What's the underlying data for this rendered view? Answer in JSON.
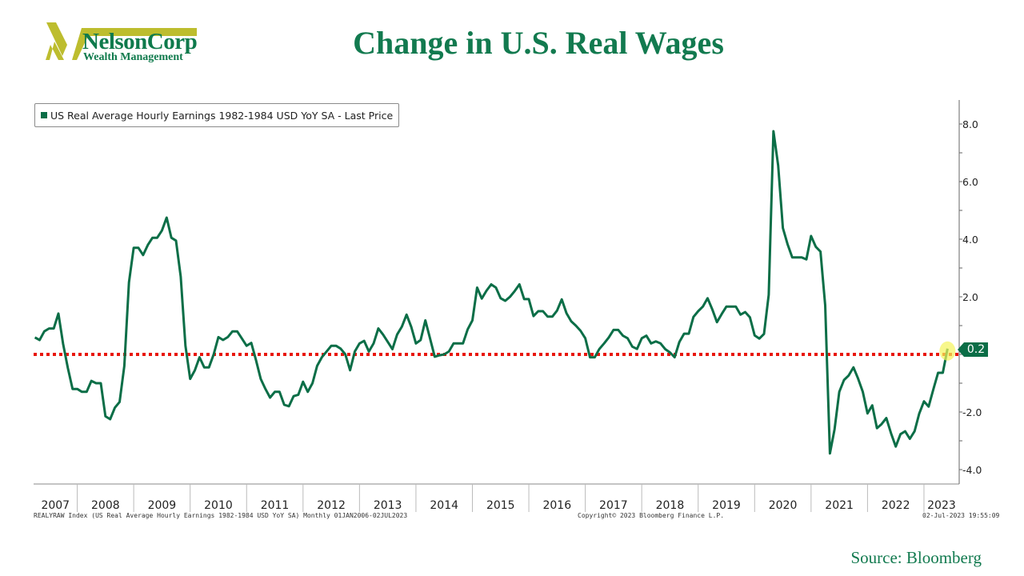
{
  "logo": {
    "name": "NelsonCorp",
    "subtitle": "Wealth Management",
    "accent": "#bdbd2e"
  },
  "title": "Change in U.S. Real Wages",
  "source": "Source: Bloomberg",
  "footer": {
    "index_note": "REALYRAW Index (US Real Average Hourly Earnings 1982-1984 USD YoY SA)  Monthly 01JAN2006-02JUL2023",
    "copyright": "Copyright© 2023 Bloomberg Finance L.P.",
    "timestamp": "02-Jul-2023 19:55:09"
  },
  "chart_data": {
    "type": "line",
    "legend": {
      "position": "top-left",
      "entries": [
        "US Real Average Hourly Earnings 1982-1984 USD YoY SA - Last Price"
      ]
    },
    "y_axis": {
      "side": "right",
      "ylim": [
        -4.5,
        8.8
      ],
      "ticks": [
        "8.0",
        "6.0",
        "4.0",
        "2.0",
        "0.0",
        "-2.0",
        "-4.0"
      ],
      "tick_values": [
        8,
        6,
        4,
        2,
        0,
        -2,
        -4
      ]
    },
    "x_axis": {
      "tick_labels": [
        "2007",
        "2008",
        "2009",
        "2010",
        "2011",
        "2012",
        "2013",
        "2014",
        "2015",
        "2016",
        "2017",
        "2018",
        "2019",
        "2020",
        "2021",
        "2022",
        "2023"
      ]
    },
    "reference_line": {
      "y": 0,
      "color": "#e8160c",
      "style": "dotted"
    },
    "last_value_label": "0.2",
    "line_color": "#0b6e47",
    "highlight_color": "#f3f35a",
    "series": [
      {
        "name": "US Real Average Hourly Earnings 1982-1984 USD YoY SA - Last Price",
        "points": [
          [
            "2007-04",
            0.59
          ],
          [
            "2007-05",
            0.5
          ],
          [
            "2007-06",
            0.8
          ],
          [
            "2007-07",
            0.9
          ],
          [
            "2007-08",
            0.9
          ],
          [
            "2007-09",
            1.42
          ],
          [
            "2007-10",
            0.36
          ],
          [
            "2007-11",
            -0.47
          ],
          [
            "2007-12",
            -1.2
          ],
          [
            "2008-01",
            -1.2
          ],
          [
            "2008-02",
            -1.3
          ],
          [
            "2008-03",
            -1.3
          ],
          [
            "2008-04",
            -0.92
          ],
          [
            "2008-05",
            -1.0
          ],
          [
            "2008-06",
            -1.0
          ],
          [
            "2008-07",
            -2.15
          ],
          [
            "2008-08",
            -2.25
          ],
          [
            "2008-09",
            -1.85
          ],
          [
            "2008-10",
            -1.65
          ],
          [
            "2008-11",
            -0.4
          ],
          [
            "2008-12",
            2.5
          ],
          [
            "2009-01",
            3.7
          ],
          [
            "2009-02",
            3.7
          ],
          [
            "2009-03",
            3.45
          ],
          [
            "2009-04",
            3.8
          ],
          [
            "2009-05",
            4.05
          ],
          [
            "2009-06",
            4.05
          ],
          [
            "2009-07",
            4.3
          ],
          [
            "2009-08",
            4.75
          ],
          [
            "2009-09",
            4.05
          ],
          [
            "2009-10",
            3.95
          ],
          [
            "2009-11",
            2.7
          ],
          [
            "2009-12",
            0.3
          ],
          [
            "2010-01",
            -0.85
          ],
          [
            "2010-02",
            -0.55
          ],
          [
            "2010-03",
            -0.1
          ],
          [
            "2010-04",
            -0.45
          ],
          [
            "2010-05",
            -0.45
          ],
          [
            "2010-06",
            0.0
          ],
          [
            "2010-07",
            0.6
          ],
          [
            "2010-08",
            0.5
          ],
          [
            "2010-09",
            0.6
          ],
          [
            "2010-10",
            0.8
          ],
          [
            "2010-11",
            0.8
          ],
          [
            "2010-12",
            0.55
          ],
          [
            "2011-01",
            0.3
          ],
          [
            "2011-02",
            0.4
          ],
          [
            "2011-03",
            -0.2
          ],
          [
            "2011-04",
            -0.85
          ],
          [
            "2011-05",
            -1.2
          ],
          [
            "2011-06",
            -1.5
          ],
          [
            "2011-07",
            -1.3
          ],
          [
            "2011-08",
            -1.3
          ],
          [
            "2011-09",
            -1.75
          ],
          [
            "2011-10",
            -1.8
          ],
          [
            "2011-11",
            -1.45
          ],
          [
            "2011-12",
            -1.4
          ],
          [
            "2012-01",
            -0.95
          ],
          [
            "2012-02",
            -1.3
          ],
          [
            "2012-03",
            -1.0
          ],
          [
            "2012-04",
            -0.4
          ],
          [
            "2012-05",
            -0.1
          ],
          [
            "2012-06",
            0.1
          ],
          [
            "2012-07",
            0.3
          ],
          [
            "2012-08",
            0.3
          ],
          [
            "2012-09",
            0.2
          ],
          [
            "2012-10",
            0.0
          ],
          [
            "2012-11",
            -0.55
          ],
          [
            "2012-12",
            0.1
          ],
          [
            "2013-01",
            0.38
          ],
          [
            "2013-02",
            0.47
          ],
          [
            "2013-03",
            0.1
          ],
          [
            "2013-04",
            0.38
          ],
          [
            "2013-05",
            0.9
          ],
          [
            "2013-06",
            0.69
          ],
          [
            "2013-07",
            0.44
          ],
          [
            "2013-08",
            0.18
          ],
          [
            "2013-09",
            0.69
          ],
          [
            "2013-10",
            0.96
          ],
          [
            "2013-11",
            1.38
          ],
          [
            "2013-12",
            0.96
          ],
          [
            "2014-01",
            0.38
          ],
          [
            "2014-02",
            0.5
          ],
          [
            "2014-03",
            1.18
          ],
          [
            "2014-04",
            0.55
          ],
          [
            "2014-05",
            -0.08
          ],
          [
            "2014-06",
            -0.03
          ],
          [
            "2014-07",
            0.0
          ],
          [
            "2014-08",
            0.1
          ],
          [
            "2014-09",
            0.38
          ],
          [
            "2014-10",
            0.38
          ],
          [
            "2014-11",
            0.38
          ],
          [
            "2014-12",
            0.87
          ],
          [
            "2015-01",
            1.18
          ],
          [
            "2015-02",
            2.32
          ],
          [
            "2015-03",
            1.94
          ],
          [
            "2015-04",
            2.21
          ],
          [
            "2015-05",
            2.43
          ],
          [
            "2015-06",
            2.32
          ],
          [
            "2015-07",
            1.95
          ],
          [
            "2015-08",
            1.86
          ],
          [
            "2015-09",
            2.0
          ],
          [
            "2015-10",
            2.2
          ],
          [
            "2015-11",
            2.43
          ],
          [
            "2015-12",
            1.92
          ],
          [
            "2016-01",
            1.92
          ],
          [
            "2016-02",
            1.33
          ],
          [
            "2016-03",
            1.5
          ],
          [
            "2016-04",
            1.5
          ],
          [
            "2016-05",
            1.31
          ],
          [
            "2016-06",
            1.31
          ],
          [
            "2016-07",
            1.52
          ],
          [
            "2016-08",
            1.91
          ],
          [
            "2016-09",
            1.43
          ],
          [
            "2016-10",
            1.15
          ],
          [
            "2016-11",
            1.0
          ],
          [
            "2016-12",
            0.82
          ],
          [
            "2017-01",
            0.56
          ],
          [
            "2017-02",
            -0.1
          ],
          [
            "2017-03",
            -0.1
          ],
          [
            "2017-04",
            0.19
          ],
          [
            "2017-05",
            0.38
          ],
          [
            "2017-06",
            0.59
          ],
          [
            "2017-07",
            0.85
          ],
          [
            "2017-08",
            0.85
          ],
          [
            "2017-09",
            0.65
          ],
          [
            "2017-10",
            0.56
          ],
          [
            "2017-11",
            0.27
          ],
          [
            "2017-12",
            0.19
          ],
          [
            "2018-01",
            0.56
          ],
          [
            "2018-02",
            0.65
          ],
          [
            "2018-03",
            0.38
          ],
          [
            "2018-04",
            0.45
          ],
          [
            "2018-05",
            0.38
          ],
          [
            "2018-06",
            0.18
          ],
          [
            "2018-07",
            0.07
          ],
          [
            "2018-08",
            -0.1
          ],
          [
            "2018-09",
            0.43
          ],
          [
            "2018-10",
            0.72
          ],
          [
            "2018-11",
            0.72
          ],
          [
            "2018-12",
            1.3
          ],
          [
            "2019-01",
            1.5
          ],
          [
            "2019-02",
            1.66
          ],
          [
            "2019-03",
            1.95
          ],
          [
            "2019-04",
            1.56
          ],
          [
            "2019-05",
            1.12
          ],
          [
            "2019-06",
            1.4
          ],
          [
            "2019-07",
            1.66
          ],
          [
            "2019-08",
            1.66
          ],
          [
            "2019-09",
            1.66
          ],
          [
            "2019-10",
            1.38
          ],
          [
            "2019-11",
            1.47
          ],
          [
            "2019-12",
            1.29
          ],
          [
            "2020-01",
            0.66
          ],
          [
            "2020-02",
            0.55
          ],
          [
            "2020-03",
            0.71
          ],
          [
            "2020-04",
            2.07
          ],
          [
            "2020-05",
            7.75
          ],
          [
            "2020-06",
            6.56
          ],
          [
            "2020-07",
            4.39
          ],
          [
            "2020-08",
            3.83
          ],
          [
            "2020-09",
            3.37
          ],
          [
            "2020-10",
            3.37
          ],
          [
            "2020-11",
            3.37
          ],
          [
            "2020-12",
            3.3
          ],
          [
            "2021-01",
            4.11
          ],
          [
            "2021-02",
            3.74
          ],
          [
            "2021-03",
            3.57
          ],
          [
            "2021-04",
            1.7
          ],
          [
            "2021-05",
            -3.44
          ],
          [
            "2021-06",
            -2.6
          ],
          [
            "2021-07",
            -1.3
          ],
          [
            "2021-08",
            -0.89
          ],
          [
            "2021-09",
            -0.73
          ],
          [
            "2021-10",
            -0.45
          ],
          [
            "2021-11",
            -0.84
          ],
          [
            "2021-12",
            -1.3
          ],
          [
            "2022-01",
            -2.05
          ],
          [
            "2022-02",
            -1.77
          ],
          [
            "2022-03",
            -2.56
          ],
          [
            "2022-04",
            -2.42
          ],
          [
            "2022-05",
            -2.21
          ],
          [
            "2022-06",
            -2.74
          ],
          [
            "2022-07",
            -3.2
          ],
          [
            "2022-08",
            -2.77
          ],
          [
            "2022-09",
            -2.67
          ],
          [
            "2022-10",
            -2.93
          ],
          [
            "2022-11",
            -2.67
          ],
          [
            "2022-12",
            -2.05
          ],
          [
            "2023-01",
            -1.63
          ],
          [
            "2023-02",
            -1.81
          ],
          [
            "2023-03",
            -1.21
          ],
          [
            "2023-04",
            -0.64
          ],
          [
            "2023-05",
            -0.64
          ],
          [
            "2023-06",
            0.2
          ]
        ]
      }
    ]
  }
}
